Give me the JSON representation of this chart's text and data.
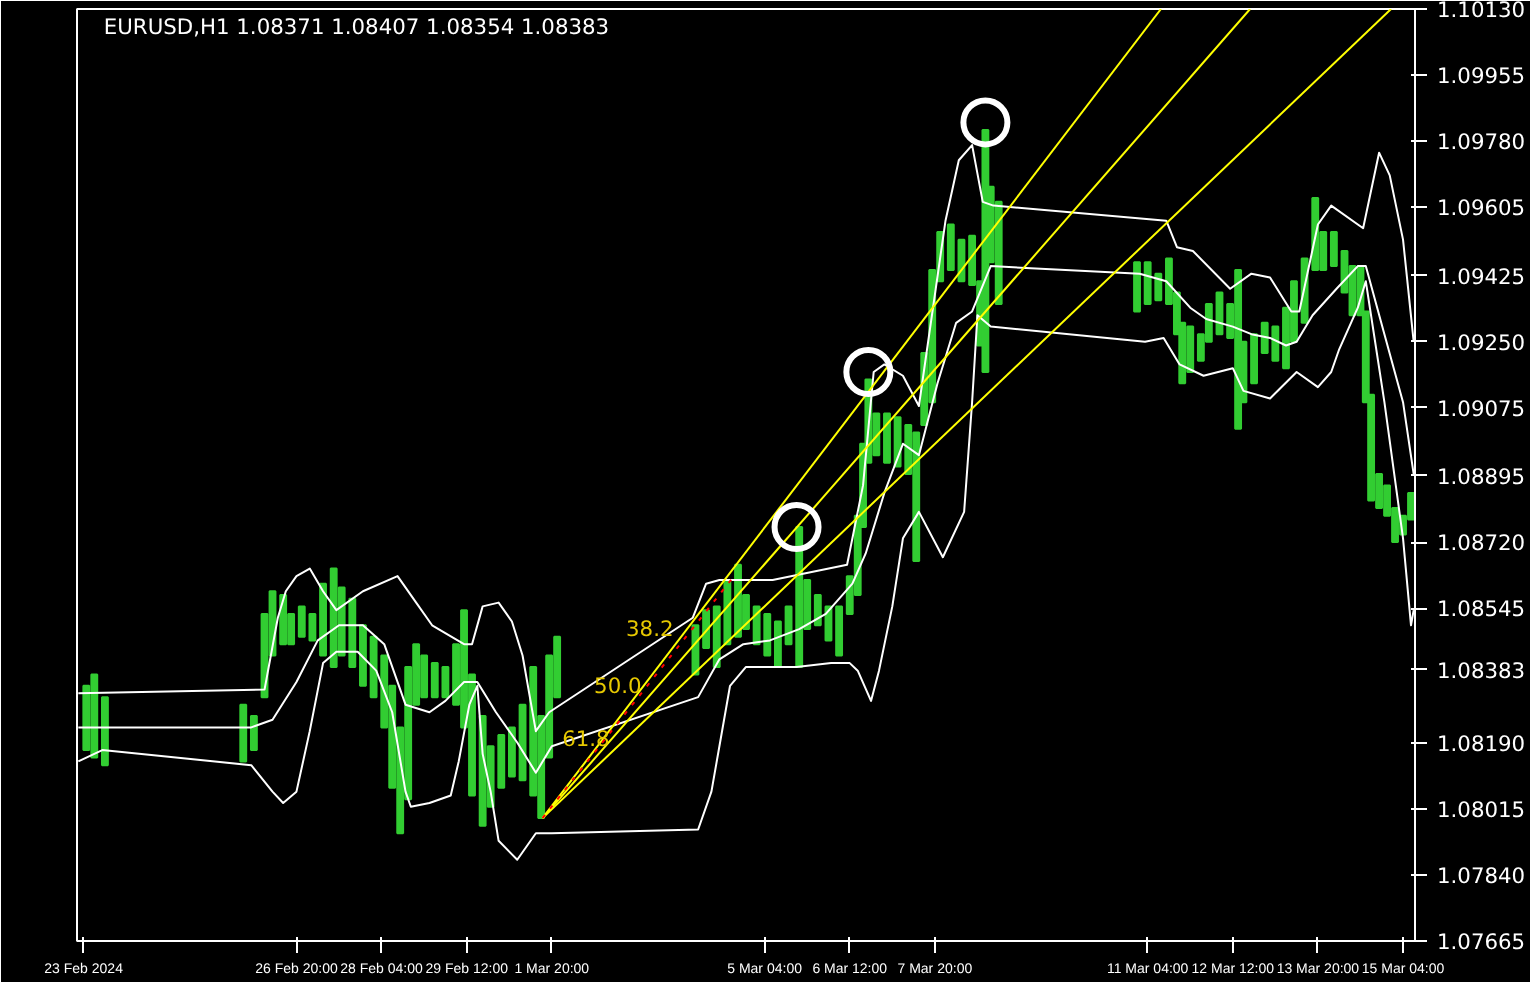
{
  "chart_data": {
    "type": "bar",
    "title": "EURUSD,H1  1.08371 1.08407 1.08354 1.08383",
    "xlim": [
      "2024-02-23T09:30",
      "2024-03-15T08:30"
    ],
    "ylim": [
      1.07665,
      1.1013
    ],
    "xticks": [
      {
        "value": "2024-02-23T12:00",
        "label": "23 Feb 2024"
      },
      {
        "value": "2024-02-26T20:00",
        "label": "26 Feb 20:00"
      },
      {
        "value": "2024-02-28T04:00",
        "label": "28 Feb 04:00"
      },
      {
        "value": "2024-02-29T12:00",
        "label": "29 Feb 12:00"
      },
      {
        "value": "2024-03-01T20:00",
        "label": "1 Mar 20:00"
      },
      {
        "value": "2024-03-05T04:00",
        "label": "5 Mar 04:00"
      },
      {
        "value": "2024-03-06T12:00",
        "label": "6 Mar 12:00"
      },
      {
        "value": "2024-03-07T20:00",
        "label": "7 Mar 20:00"
      },
      {
        "value": "2024-03-11T04:00",
        "label": "11 Mar 04:00"
      },
      {
        "value": "2024-03-12T12:00",
        "label": "12 Mar 12:00"
      },
      {
        "value": "2024-03-13T20:00",
        "label": "13 Mar 20:00"
      },
      {
        "value": "2024-03-15T04:00",
        "label": "15 Mar 04:00"
      }
    ],
    "yticks": [
      {
        "value": 1.1013,
        "label": "1.10130"
      },
      {
        "value": 1.09955,
        "label": "1.09955"
      },
      {
        "value": 1.0978,
        "label": "1.09780"
      },
      {
        "value": 1.09605,
        "label": "1.09605"
      },
      {
        "value": 1.09425,
        "label": "1.09425"
      },
      {
        "value": 1.0925,
        "label": "1.09250"
      },
      {
        "value": 1.09075,
        "label": "1.09075"
      },
      {
        "value": 1.08895,
        "label": "1.08895"
      },
      {
        "value": 1.0872,
        "label": "1.08720"
      },
      {
        "value": 1.08545,
        "label": "1.08545"
      },
      {
        "value": 1.08383,
        "label": "1.08383"
      },
      {
        "value": 1.0819,
        "label": "1.08190"
      },
      {
        "value": 1.08015,
        "label": "1.08015"
      },
      {
        "value": 1.0784,
        "label": "1.07840"
      },
      {
        "value": 1.07665,
        "label": "1.07665"
      }
    ],
    "annotations": [
      {
        "text": "38.2",
        "x": "2024-03-03T20:00",
        "y": 1.0846
      },
      {
        "text": "50.0",
        "x": "2024-03-03T08:00",
        "y": 1.0831
      },
      {
        "text": "61.8",
        "x": "2024-03-02T20:00",
        "y": 1.0817
      }
    ],
    "series": [
      {
        "type": "line",
        "color": "#ffffff",
        "x": [
          "2024-02-23T10:00",
          "2024-02-26T08:00",
          "2024-02-26T13:00",
          "2024-02-26T16:00",
          "2024-02-26T20:00",
          "2024-02-27T01:00",
          "2024-02-27T06:00",
          "2024-02-27T11:00",
          "2024-02-27T21:00",
          "2024-02-28T10:00",
          "2024-02-28T17:00",
          "2024-02-28T23:00",
          "2024-02-29T11:00",
          "2024-02-29T14:00",
          "2024-02-29T18:00",
          "2024-03-01T00:00",
          "2024-03-01T05:00",
          "2024-03-01T09:00",
          "2024-03-01T14:00",
          "2024-03-01T19:00",
          "2024-03-04T01:00",
          "2024-03-04T06:00",
          "2024-03-04T11:00",
          "2024-03-05T07:00",
          "2024-03-06T11:00",
          "2024-03-06T17:00",
          "2024-03-06T21:00",
          "2024-03-07T01:00",
          "2024-03-07T08:00",
          "2024-03-07T14:00",
          "2024-03-08T00:00",
          "2024-03-08T05:00",
          "2024-03-08T10:00",
          "2024-03-08T14:00",
          "2024-03-08T18:00",
          "2024-03-11T11:00",
          "2024-03-11T15:00",
          "2024-03-11T21:00",
          "2024-03-12T11:00",
          "2024-03-12T19:00",
          "2024-03-13T02:00",
          "2024-03-13T10:00",
          "2024-03-13T13:00",
          "2024-03-13T20:00",
          "2024-03-14T01:00",
          "2024-03-14T13:00",
          "2024-03-14T19:00",
          "2024-03-14T23:00",
          "2024-03-15T04:00",
          "2024-03-15T08:00"
        ],
        "values": [
          1.0832,
          1.0833,
          1.0852,
          1.0859,
          1.0863,
          1.0865,
          1.0859,
          1.0854,
          1.0859,
          1.0863,
          1.0856,
          1.085,
          1.0845,
          1.0845,
          1.0855,
          1.0856,
          1.0851,
          1.0842,
          1.0822,
          1.0827,
          1.0852,
          1.0861,
          1.0862,
          1.0862,
          1.0866,
          1.0887,
          1.0917,
          1.0919,
          1.0916,
          1.0908,
          1.0957,
          1.0973,
          1.0977,
          1.0962,
          1.0961,
          1.0957,
          1.095,
          1.0949,
          1.0939,
          1.0943,
          1.0942,
          1.0933,
          1.0933,
          1.0956,
          1.0961,
          1.0955,
          1.0975,
          1.0969,
          1.0952,
          1.0925
        ]
      },
      {
        "type": "line",
        "color": "#ffffff",
        "x": [
          "2024-02-23T10:00",
          "2024-02-26T03:00",
          "2024-02-26T11:00",
          "2024-02-26T20:00",
          "2024-02-27T04:00",
          "2024-02-27T12:00",
          "2024-02-27T21:00",
          "2024-02-28T05:00",
          "2024-02-28T13:00",
          "2024-02-28T22:00",
          "2024-02-29T04:00",
          "2024-02-29T11:00",
          "2024-02-29T16:00",
          "2024-02-29T23:00",
          "2024-03-01T07:00",
          "2024-03-01T14:00",
          "2024-03-01T20:00",
          "2024-03-04T03:00",
          "2024-03-04T11:00",
          "2024-03-04T20:00",
          "2024-03-05T06:00",
          "2024-03-05T17:00",
          "2024-03-06T03:00",
          "2024-03-06T13:00",
          "2024-03-06T18:00",
          "2024-03-07T01:00",
          "2024-03-07T08:00",
          "2024-03-07T14:00",
          "2024-03-07T21:00",
          "2024-03-08T04:00",
          "2024-03-08T10:00",
          "2024-03-08T17:00",
          "2024-03-11T01:00",
          "2024-03-11T11:00",
          "2024-03-11T20:00",
          "2024-03-12T02:00",
          "2024-03-12T12:00",
          "2024-03-12T19:00",
          "2024-03-13T02:00",
          "2024-03-13T08:00",
          "2024-03-13T12:00",
          "2024-03-13T18:00",
          "2024-03-14T03:00",
          "2024-03-14T11:00",
          "2024-03-14T14:00",
          "2024-03-14T21:00",
          "2024-03-15T04:00",
          "2024-03-15T08:00"
        ],
        "values": [
          1.0823,
          1.0823,
          1.0825,
          1.0835,
          1.0846,
          1.085,
          1.085,
          1.0845,
          1.0829,
          1.0827,
          1.083,
          1.0835,
          1.0835,
          1.0827,
          1.0819,
          1.0811,
          1.0818,
          1.0831,
          1.0841,
          1.0845,
          1.0846,
          1.0849,
          1.0853,
          1.0861,
          1.0869,
          1.0885,
          1.0898,
          1.0895,
          1.0914,
          1.093,
          1.0933,
          1.0945,
          1.0943,
          1.0941,
          1.0934,
          1.0931,
          1.0929,
          1.0927,
          1.0926,
          1.0924,
          1.0925,
          1.0932,
          1.0939,
          1.0945,
          1.0945,
          1.0927,
          1.0909,
          1.089
        ]
      },
      {
        "type": "line",
        "color": "#ffffff",
        "x": [
          "2024-02-23T10:00",
          "2024-02-23T19:00",
          "2024-02-26T03:00",
          "2024-02-26T11:00",
          "2024-02-26T15:00",
          "2024-02-26T20:00",
          "2024-02-27T01:00",
          "2024-02-27T06:00",
          "2024-02-27T11:00",
          "2024-02-27T19:00",
          "2024-02-28T02:00",
          "2024-02-28T08:00",
          "2024-02-28T13:00",
          "2024-02-28T15:00",
          "2024-02-28T22:00",
          "2024-02-29T06:00",
          "2024-02-29T09:00",
          "2024-02-29T13:00",
          "2024-02-29T16:00",
          "2024-02-29T18:00",
          "2024-02-29T21:00",
          "2024-03-01T00:00",
          "2024-03-01T07:00",
          "2024-03-01T14:00",
          "2024-03-01T20:00",
          "2024-03-04T03:00",
          "2024-03-04T08:00",
          "2024-03-04T11:00",
          "2024-03-04T15:00",
          "2024-03-04T21:00",
          "2024-03-05T16:00",
          "2024-03-06T05:00",
          "2024-03-06T12:00",
          "2024-03-06T15:00",
          "2024-03-06T20:00",
          "2024-03-06T23:00",
          "2024-03-07T04:00",
          "2024-03-07T08:00",
          "2024-03-07T14:00",
          "2024-03-07T23:00",
          "2024-03-08T07:00",
          "2024-03-08T10:00",
          "2024-03-08T12:00",
          "2024-03-08T17:00",
          "2024-03-11T03:00",
          "2024-03-11T10:00",
          "2024-03-11T16:00",
          "2024-03-12T01:00",
          "2024-03-12T12:00",
          "2024-03-12T16:00",
          "2024-03-13T02:00",
          "2024-03-13T12:00",
          "2024-03-13T20:00",
          "2024-03-14T01:00",
          "2024-03-14T04:00",
          "2024-03-14T11:00",
          "2024-03-14T14:00",
          "2024-03-14T21:00",
          "2024-03-15T04:00",
          "2024-03-15T07:00",
          "2024-03-15T08:00"
        ],
        "values": [
          1.0814,
          1.0817,
          1.0813,
          1.0806,
          1.0803,
          1.0806,
          1.0822,
          1.084,
          1.0843,
          1.0843,
          1.0838,
          1.0827,
          1.0806,
          1.0802,
          1.0803,
          1.0805,
          1.0814,
          1.0829,
          1.0834,
          1.0816,
          1.0806,
          1.0793,
          1.0788,
          1.0795,
          1.0795,
          1.0796,
          1.0806,
          1.0818,
          1.0834,
          1.0839,
          1.0839,
          1.084,
          1.084,
          1.0838,
          1.083,
          1.0838,
          1.0855,
          1.0873,
          1.088,
          1.0868,
          1.088,
          1.0909,
          1.0932,
          1.0929,
          1.0925,
          1.0926,
          1.0919,
          1.0916,
          1.0918,
          1.0912,
          1.091,
          1.0917,
          1.0913,
          1.0917,
          1.0923,
          1.0934,
          1.0941,
          1.0909,
          1.0873,
          1.085,
          1.0854
        ]
      },
      {
        "type": "line",
        "color": "#ffff00",
        "x": [
          "2024-03-01T16:30",
          "2024-03-11T09:00"
        ],
        "values": [
          1.0799,
          1.1013
        ]
      },
      {
        "type": "line",
        "color": "#ffff00",
        "x": [
          "2024-03-01T16:30",
          "2024-03-12T18:30"
        ],
        "values": [
          1.0799,
          1.1013
        ]
      },
      {
        "type": "line",
        "color": "#ffff00",
        "x": [
          "2024-03-01T16:30",
          "2024-03-14T23:30"
        ],
        "values": [
          1.0799,
          1.1013
        ]
      },
      {
        "type": "line",
        "color": "#ff0000",
        "line_style": "dotted",
        "x": [
          "2024-03-01T16:30",
          "2024-03-04T16:30"
        ],
        "values": [
          1.0799,
          1.0863
        ]
      },
      {
        "color": "#32cd32",
        "x": [
          "2024-02-23T13:00",
          "2024-02-23T16:00",
          "2024-02-23T20:00",
          "2024-02-26T00:00",
          "2024-02-26T04:00",
          "2024-02-26T08:00",
          "2024-02-26T11:00",
          "2024-02-26T15:00",
          "2024-02-26T18:00",
          "2024-02-26T22:00",
          "2024-02-27T02:00",
          "2024-02-27T06:00",
          "2024-02-27T10:00",
          "2024-02-27T13:00",
          "2024-02-27T17:00",
          "2024-02-27T21:00",
          "2024-02-28T01:00",
          "2024-02-28T05:00",
          "2024-02-28T08:00",
          "2024-02-28T11:00",
          "2024-02-28T14:00",
          "2024-02-28T17:00",
          "2024-02-28T20:00",
          "2024-02-29T00:00",
          "2024-02-29T04:00",
          "2024-02-29T08:00",
          "2024-02-29T11:00",
          "2024-02-29T14:00",
          "2024-02-29T18:00",
          "2024-02-29T21:00",
          "2024-03-01T01:00",
          "2024-03-01T05:00",
          "2024-03-01T09:00",
          "2024-03-01T13:00",
          "2024-03-01T16:00",
          "2024-03-01T19:00",
          "2024-03-01T22:00",
          "2024-03-04T02:00",
          "2024-03-04T06:00",
          "2024-03-04T10:00",
          "2024-03-04T14:00",
          "2024-03-04T18:00",
          "2024-03-04T21:00",
          "2024-03-05T01:00",
          "2024-03-05T05:00",
          "2024-03-05T09:00",
          "2024-03-05T13:00",
          "2024-03-05T17:00",
          "2024-03-05T20:00",
          "2024-03-06T00:00",
          "2024-03-06T04:00",
          "2024-03-06T08:00",
          "2024-03-06T12:00",
          "2024-03-06T15:00",
          "2024-03-06T17:00",
          "2024-03-06T19:00",
          "2024-03-06T22:00",
          "2024-03-07T02:00",
          "2024-03-07T06:00",
          "2024-03-07T10:00",
          "2024-03-07T13:00",
          "2024-03-07T16:00",
          "2024-03-07T19:00",
          "2024-03-07T22:00",
          "2024-03-08T02:00",
          "2024-03-08T06:00",
          "2024-03-08T10:00",
          "2024-03-08T13:00",
          "2024-03-08T15:00",
          "2024-03-08T17:00",
          "2024-03-08T20:00",
          "2024-03-11T00:00",
          "2024-03-11T04:00",
          "2024-03-11T08:00",
          "2024-03-11T12:00",
          "2024-03-11T15:00",
          "2024-03-11T17:00",
          "2024-03-11T20:00",
          "2024-03-12T00:00",
          "2024-03-12T03:00",
          "2024-03-12T07:00",
          "2024-03-12T11:00",
          "2024-03-12T14:00",
          "2024-03-12T16:00",
          "2024-03-12T20:00",
          "2024-03-13T00:00",
          "2024-03-13T04:00",
          "2024-03-13T08:00",
          "2024-03-13T11:00",
          "2024-03-13T15:00",
          "2024-03-13T19:00",
          "2024-03-13T22:00",
          "2024-03-14T02:00",
          "2024-03-14T06:00",
          "2024-03-14T09:00",
          "2024-03-14T12:00",
          "2024-03-14T14:00",
          "2024-03-14T16:00",
          "2024-03-14T19:00",
          "2024-03-14T22:00",
          "2024-03-15T01:00",
          "2024-03-15T04:00",
          "2024-03-15T07:00"
        ],
        "base": [
          1.0817,
          1.0815,
          1.0813,
          1.0814,
          1.0817,
          1.0831,
          1.0842,
          1.0845,
          1.0845,
          1.0847,
          1.0846,
          1.0842,
          1.0839,
          1.0842,
          1.0839,
          1.0834,
          1.0831,
          1.0823,
          1.0807,
          1.0795,
          1.0804,
          1.0829,
          1.0831,
          1.0831,
          1.0831,
          1.0829,
          1.0823,
          1.0805,
          1.0797,
          1.0802,
          1.0807,
          1.081,
          1.0809,
          1.0805,
          1.0799,
          1.0815,
          1.0831,
          1.0837,
          1.0844,
          1.0839,
          1.0845,
          1.0847,
          1.0849,
          1.0845,
          1.0842,
          1.0839,
          1.0845,
          1.0839,
          1.0849,
          1.085,
          1.0846,
          1.0842,
          1.0853,
          1.0858,
          1.0876,
          1.0893,
          1.0895,
          1.0893,
          1.0892,
          1.089,
          1.0867,
          1.0903,
          1.0909,
          1.0941,
          1.0944,
          1.0941,
          1.094,
          1.0924,
          1.0917,
          1.0946,
          1.0935,
          1.0933,
          1.0935,
          1.0936,
          1.0935,
          1.0927,
          1.0914,
          1.0917,
          1.092,
          1.0925,
          1.0927,
          1.0926,
          1.0902,
          1.0909,
          1.0914,
          1.0922,
          1.092,
          1.0918,
          1.0925,
          1.093,
          1.0944,
          1.0944,
          1.0945,
          1.0938,
          1.0932,
          1.0932,
          1.0909,
          1.0883,
          1.0881,
          1.0879,
          1.0872,
          1.0874,
          1.0878
        ],
        "values": [
          0.0017,
          0.0022,
          0.0018,
          0.0015,
          0.0009,
          0.0022,
          0.0017,
          0.0013,
          0.0008,
          0.0008,
          0.0007,
          0.0019,
          0.0026,
          0.0018,
          0.0018,
          0.0016,
          0.0016,
          0.0019,
          0.0027,
          0.0028,
          0.0035,
          0.0016,
          0.0011,
          0.0009,
          0.0008,
          0.0016,
          0.0031,
          0.0032,
          0.0029,
          0.0016,
          0.0014,
          0.0013,
          0.002,
          0.0034,
          0.0027,
          0.0027,
          0.0016,
          0.0013,
          0.001,
          0.0016,
          0.0017,
          0.0019,
          0.0009,
          0.001,
          0.0011,
          0.0012,
          0.001,
          0.0037,
          0.0013,
          0.0008,
          0.0009,
          0.0013,
          0.001,
          0.0021,
          0.0022,
          0.0022,
          0.0011,
          0.0013,
          0.0013,
          0.0013,
          0.0034,
          0.0019,
          0.0035,
          0.0013,
          0.0012,
          0.0011,
          0.0013,
          0.0017,
          0.0064,
          0.002,
          0.0027,
          0.0013,
          0.0011,
          0.0007,
          0.0012,
          0.0011,
          0.0016,
          0.0012,
          0.0007,
          0.001,
          0.0011,
          0.0009,
          0.0042,
          0.0016,
          0.0013,
          0.0008,
          0.0009,
          0.0016,
          0.0016,
          0.0017,
          0.0019,
          0.001,
          0.0009,
          0.0011,
          0.0013,
          0.0013,
          0.0024,
          0.0028,
          0.0009,
          0.0008,
          0.0009,
          0.0005,
          0.0007
        ]
      },
      {
        "type": "scatter",
        "color": "#ffffff",
        "marker": "circle",
        "x": [
          "2024-03-05T16:00",
          "2024-03-06T19:00",
          "2024-03-08T15:00"
        ],
        "values": [
          1.0876,
          1.0917,
          1.0983
        ]
      }
    ]
  }
}
